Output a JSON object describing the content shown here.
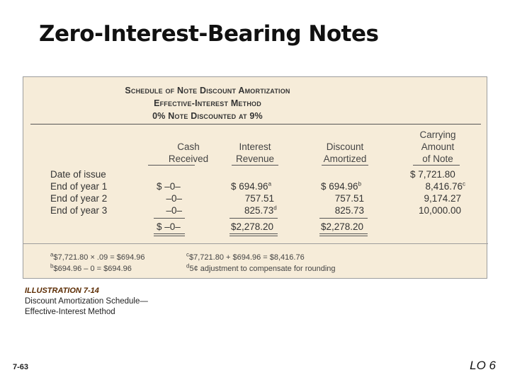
{
  "slide": {
    "title": "Zero-Interest-Bearing Notes",
    "page_number": "7-63",
    "lo_label": "LO 6"
  },
  "schedule": {
    "heading_line1": "Schedule of Note Discount Amortization",
    "heading_line2": "Effective-Interest Method",
    "heading_line3": "0% Note Discounted at 9%",
    "columns": {
      "cash": [
        "Cash",
        "Received"
      ],
      "interest": [
        "Interest",
        "Revenue"
      ],
      "discount": [
        "Discount",
        "Amortized"
      ],
      "carrying": [
        "Carrying",
        "Amount",
        "of Note"
      ]
    },
    "rows": [
      {
        "label": "Date of issue",
        "cash": "",
        "interest": "",
        "interest_sup": "",
        "discount": "",
        "discount_sup": "",
        "carrying": "$ 7,721.80",
        "carrying_sup": ""
      },
      {
        "label": "End of year 1",
        "cash": "$ –0–",
        "interest": "$  694.96",
        "interest_sup": "a",
        "discount": "$  694.96",
        "discount_sup": "b",
        "carrying": "8,416.76",
        "carrying_sup": "c"
      },
      {
        "label": "End of year 2",
        "cash": "–0–",
        "interest": "757.51",
        "interest_sup": "",
        "discount": "757.51",
        "discount_sup": "",
        "carrying": "9,174.27",
        "carrying_sup": ""
      },
      {
        "label": "End of year 3",
        "cash": "–0–",
        "interest": "825.73",
        "interest_sup": "d",
        "discount": "825.73",
        "discount_sup": "",
        "carrying": "10,000.00",
        "carrying_sup": ""
      }
    ],
    "totals": {
      "cash": "$ –0–",
      "interest": "$2,278.20",
      "discount": "$2,278.20"
    },
    "footnotes": {
      "a_mark": "a",
      "a_text": "$7,721.80 × .09 = $694.96",
      "b_mark": "b",
      "b_text": "$694.96 – 0 = $694.96",
      "c_mark": "c",
      "c_text": "$7,721.80 + $694.96 = $8,416.76",
      "d_mark": "d",
      "d_text": "5¢ adjustment to compensate for rounding"
    }
  },
  "caption": {
    "number": "ILLUSTRATION 7-14",
    "line1": "Discount Amortization Schedule—",
    "line2": "Effective-Interest Method"
  }
}
